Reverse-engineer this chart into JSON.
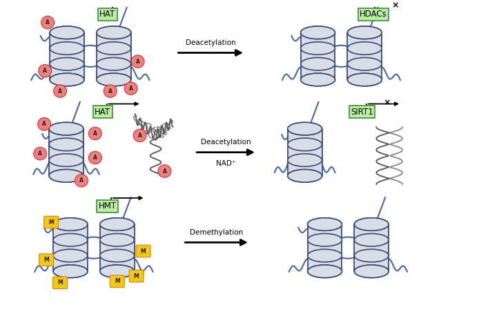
{
  "background_color": "#ffffff",
  "rows": [
    {
      "label": "HAT",
      "label2": "HDACs",
      "arrow_text": "Deacetylation",
      "arrow_text2": "",
      "mark": "A",
      "mark_color": "#f08080",
      "mark_border": "#cc3333",
      "blocked": true,
      "type": "pair"
    },
    {
      "label": "HAT",
      "label2": "SIRT1",
      "arrow_text": "Deacetylation",
      "arrow_text2": "NAD⁺",
      "mark": "A",
      "mark_color": "#f08080",
      "mark_border": "#cc3333",
      "blocked": true,
      "type": "single_helix"
    },
    {
      "label": "HMT",
      "label2": "",
      "arrow_text": "Demethylation",
      "arrow_text2": "",
      "mark": "M",
      "mark_color": "#f5c518",
      "mark_border": "#cc8800",
      "blocked": false,
      "type": "pair"
    }
  ],
  "nuc_fill": "#d8dde8",
  "nuc_edge": "#3a4a70",
  "nuc_band": "#3a4a70",
  "dna_color": "#4466aa",
  "lbox_fill": "#b8f0a0",
  "lbox_edge": "#448844",
  "arrow_color": "#111111",
  "helix_color": "#555555",
  "helix_color2": "#888888"
}
